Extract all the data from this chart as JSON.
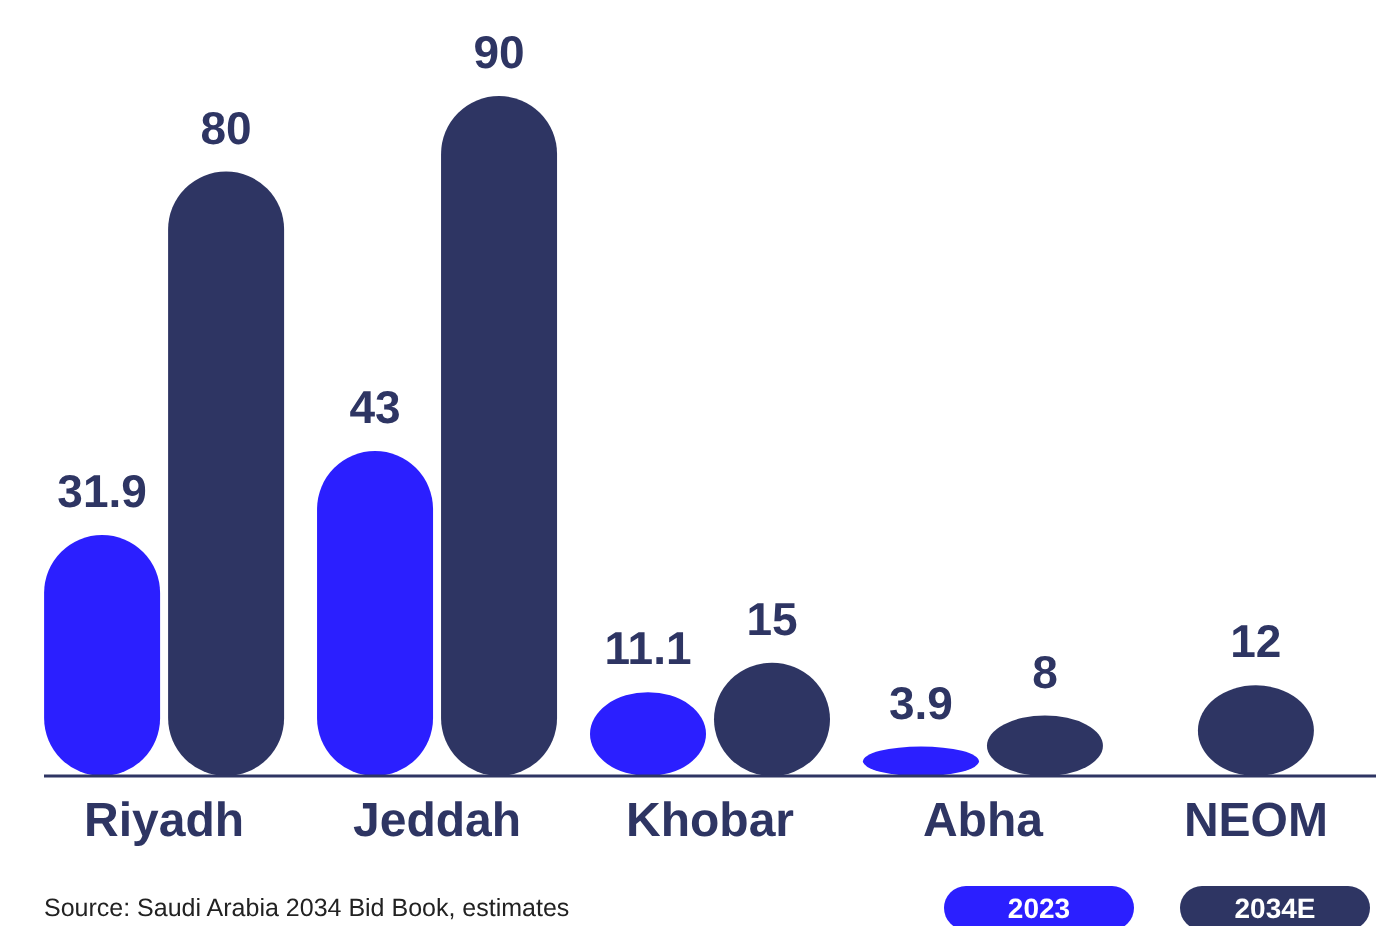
{
  "chart_data": {
    "type": "bar",
    "categories": [
      "Riyadh",
      "Jeddah",
      "Khobar",
      "Abha",
      "NEOM"
    ],
    "series": [
      {
        "name": "2023",
        "color": "#2b1fff",
        "values": [
          31.9,
          43,
          11.1,
          3.9,
          null
        ]
      },
      {
        "name": "2034E",
        "color": "#2e3563",
        "values": [
          80,
          90,
          15,
          8,
          12
        ]
      }
    ],
    "relative": false,
    "data_labels": true,
    "legend": "bottom right",
    "grid": false,
    "annotations": [
      "Source: Saudi Arabia 2034 Bid Book, estimates"
    ]
  }
}
